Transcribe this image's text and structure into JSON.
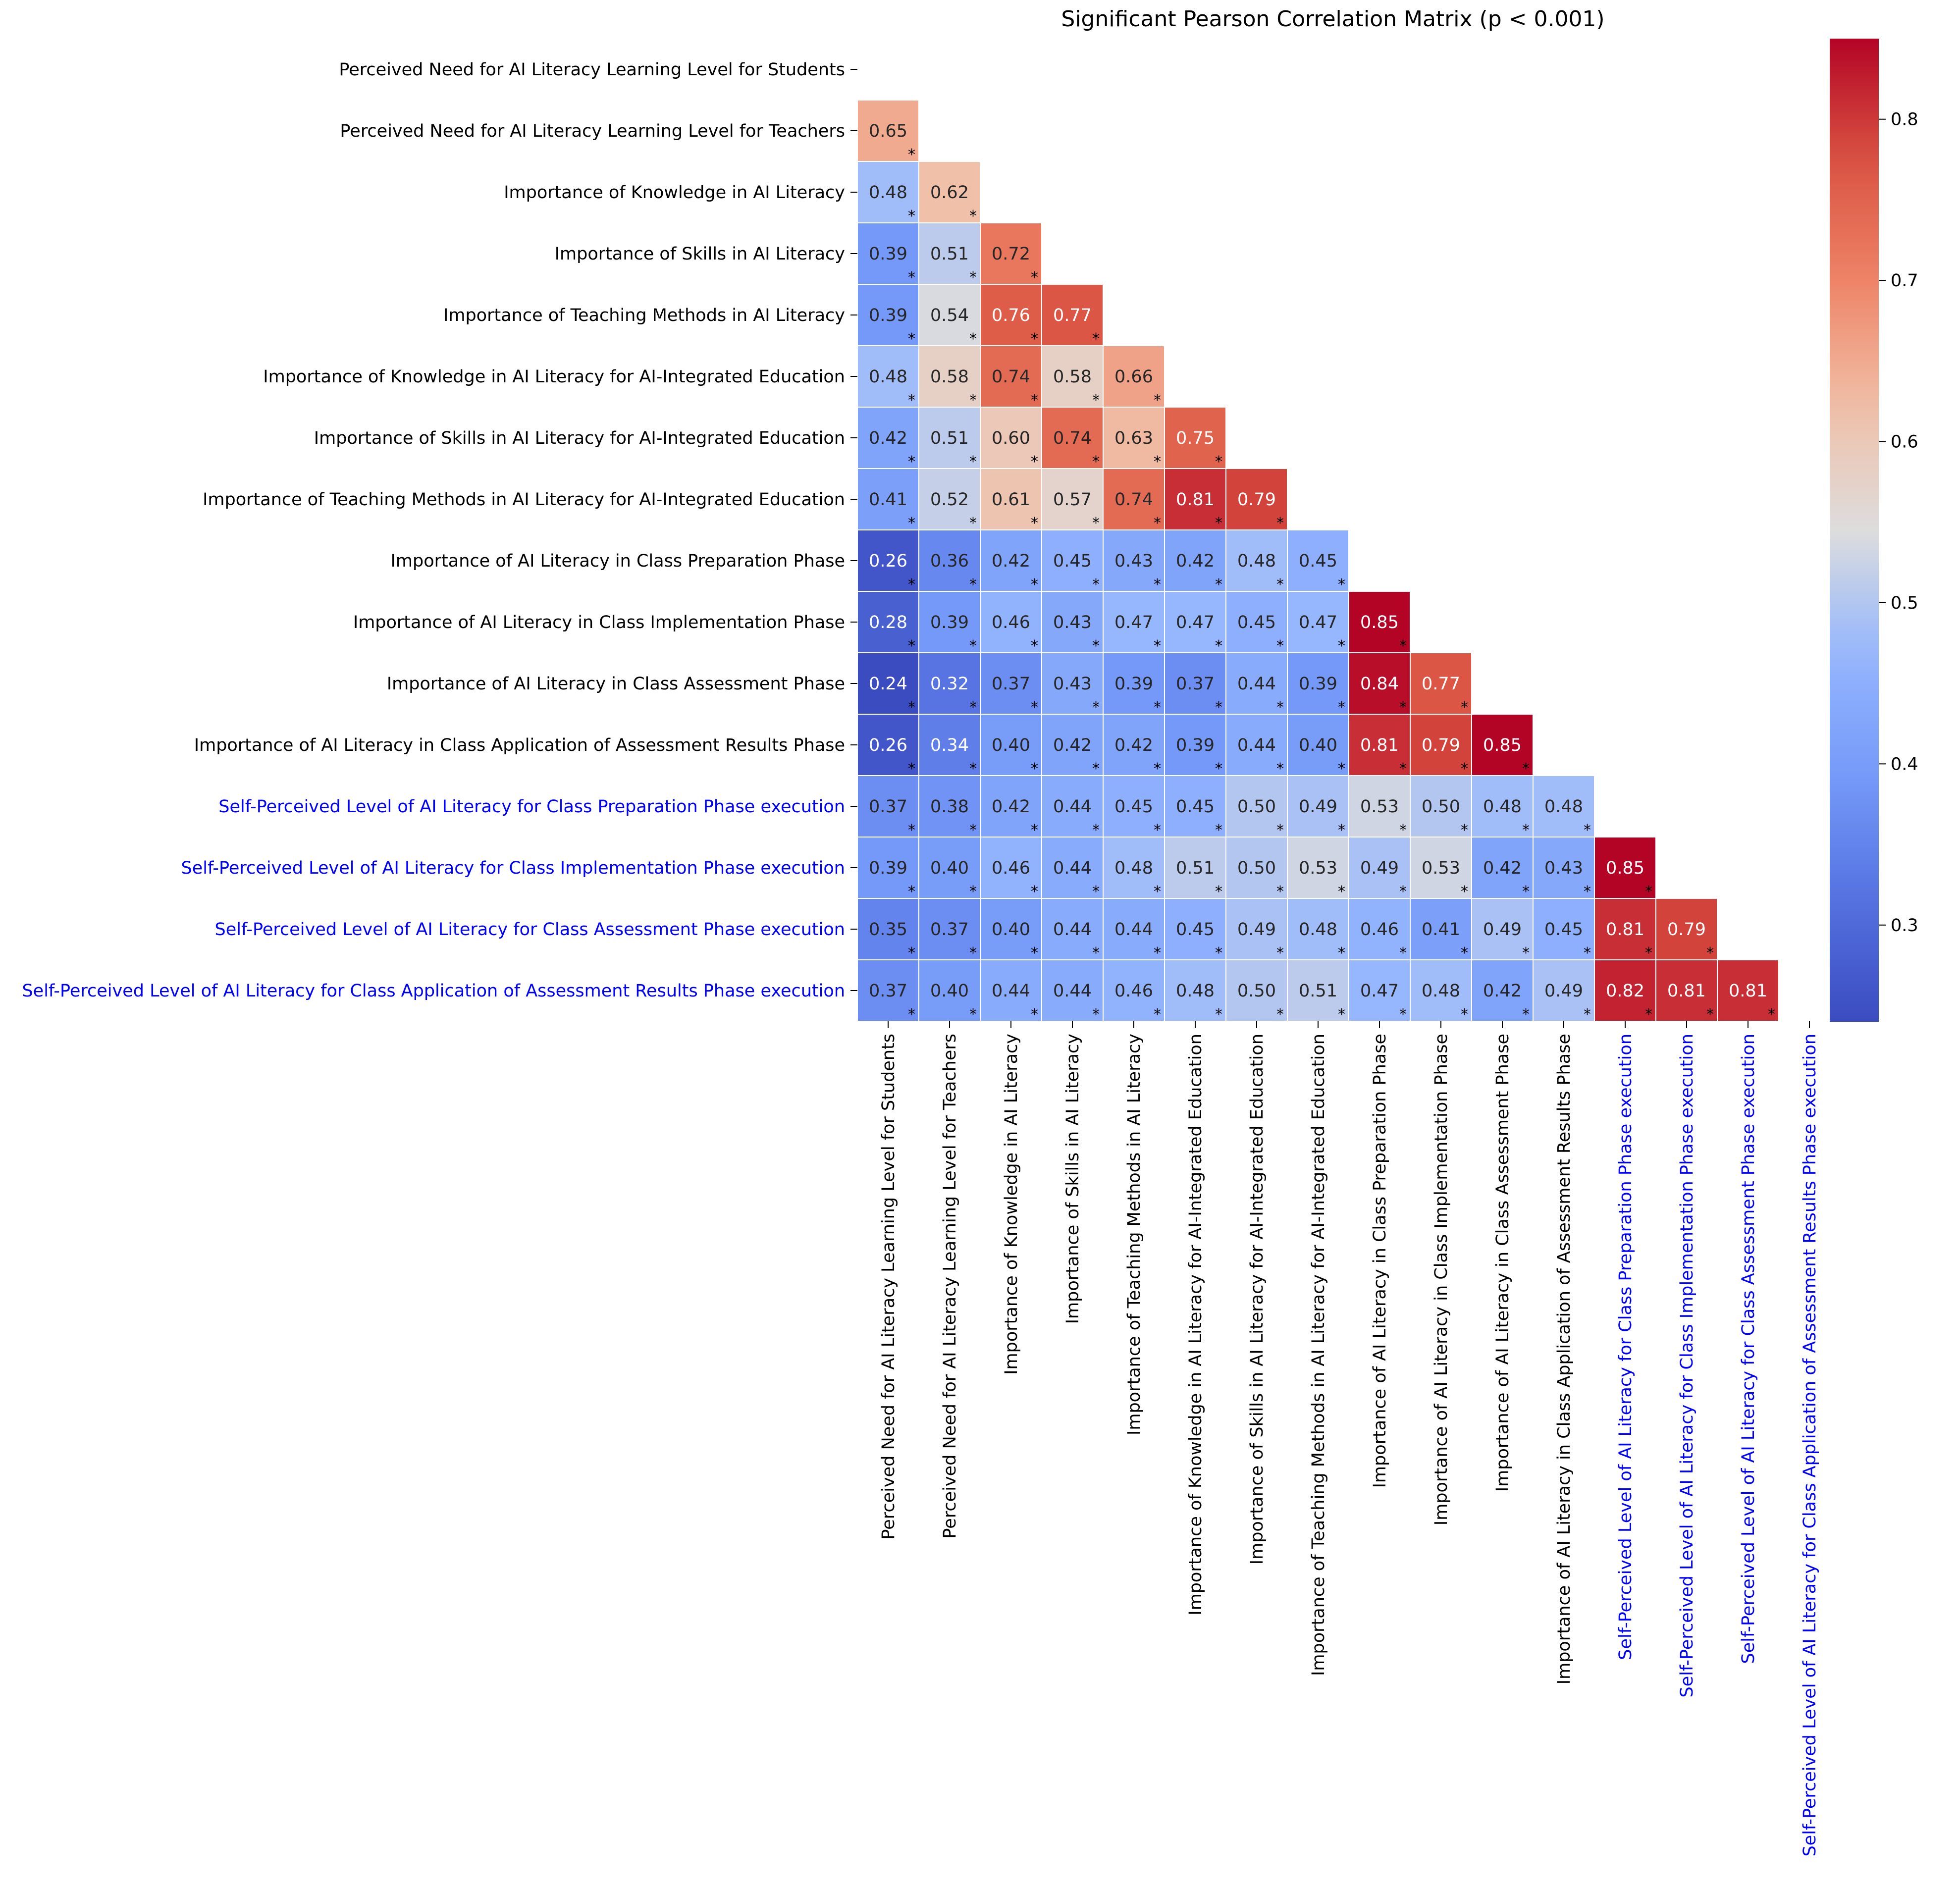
{
  "chart_data": {
    "type": "heatmap",
    "title": "Significant Pearson Correlation Matrix (p < 0.001)",
    "variables": [
      "Perceived Need for AI Literacy Learning Level for Students",
      "Perceived Need for AI Literacy Learning Level for Teachers",
      "Importance of Knowledge in AI Literacy",
      "Importance of Skills in AI Literacy",
      "Importance of Teaching Methods in AI Literacy",
      "Importance of Knowledge in AI Literacy for AI-Integrated Education",
      "Importance of Skills in AI Literacy for AI-Integrated Education",
      "Importance of Teaching Methods in AI Literacy for AI-Integrated Education",
      "Importance of AI Literacy in Class Preparation Phase",
      "Importance of AI Literacy in Class Implementation Phase",
      "Importance of AI Literacy in Class Assessment Phase",
      "Importance of AI Literacy in Class Application of Assessment Results Phase",
      "Self-Perceived Level of AI Literacy for Class Preparation Phase execution",
      "Self-Perceived Level of AI Literacy for Class Implementation Phase execution",
      "Self-Perceived Level of AI Literacy for Class Assessment Phase execution",
      "Self-Perceived Level of AI Literacy for Class Application of Assessment Results Phase execution"
    ],
    "label_colors": [
      "#000000",
      "#000000",
      "#000000",
      "#000000",
      "#000000",
      "#000000",
      "#000000",
      "#000000",
      "#000000",
      "#000000",
      "#000000",
      "#000000",
      "#0000ff",
      "#0000ff",
      "#0000ff",
      "#0000ff"
    ],
    "lower_triangle_values": [
      [],
      [
        0.65
      ],
      [
        0.48,
        0.62
      ],
      [
        0.39,
        0.51,
        0.72
      ],
      [
        0.39,
        0.54,
        0.76,
        0.77
      ],
      [
        0.48,
        0.58,
        0.74,
        0.58,
        0.66
      ],
      [
        0.42,
        0.51,
        0.6,
        0.74,
        0.63,
        0.75
      ],
      [
        0.41,
        0.52,
        0.61,
        0.57,
        0.74,
        0.81,
        0.79
      ],
      [
        0.26,
        0.36,
        0.42,
        0.45,
        0.43,
        0.42,
        0.48,
        0.45
      ],
      [
        0.28,
        0.39,
        0.46,
        0.43,
        0.47,
        0.47,
        0.45,
        0.47,
        0.85
      ],
      [
        0.24,
        0.32,
        0.37,
        0.43,
        0.39,
        0.37,
        0.44,
        0.39,
        0.84,
        0.77
      ],
      [
        0.26,
        0.34,
        0.4,
        0.42,
        0.42,
        0.39,
        0.44,
        0.4,
        0.81,
        0.79,
        0.85
      ],
      [
        0.37,
        0.38,
        0.42,
        0.44,
        0.45,
        0.45,
        0.5,
        0.49,
        0.53,
        0.5,
        0.48,
        0.48
      ],
      [
        0.39,
        0.4,
        0.46,
        0.44,
        0.48,
        0.51,
        0.5,
        0.53,
        0.49,
        0.53,
        0.42,
        0.43,
        0.85
      ],
      [
        0.35,
        0.37,
        0.4,
        0.44,
        0.44,
        0.45,
        0.49,
        0.48,
        0.46,
        0.41,
        0.49,
        0.45,
        0.81,
        0.79
      ],
      [
        0.37,
        0.4,
        0.44,
        0.44,
        0.46,
        0.48,
        0.5,
        0.51,
        0.47,
        0.48,
        0.42,
        0.49,
        0.82,
        0.81,
        0.81
      ]
    ],
    "significance_marker": "*",
    "colormap": "coolwarm",
    "vmin": 0.24,
    "vmax": 0.85,
    "colorbar_ticks": [
      0.3,
      0.4,
      0.5,
      0.6,
      0.7,
      0.8
    ],
    "colorbar_tick_labels": [
      "0.3",
      "0.4",
      "0.5",
      "0.6",
      "0.7",
      "0.8"
    ]
  }
}
